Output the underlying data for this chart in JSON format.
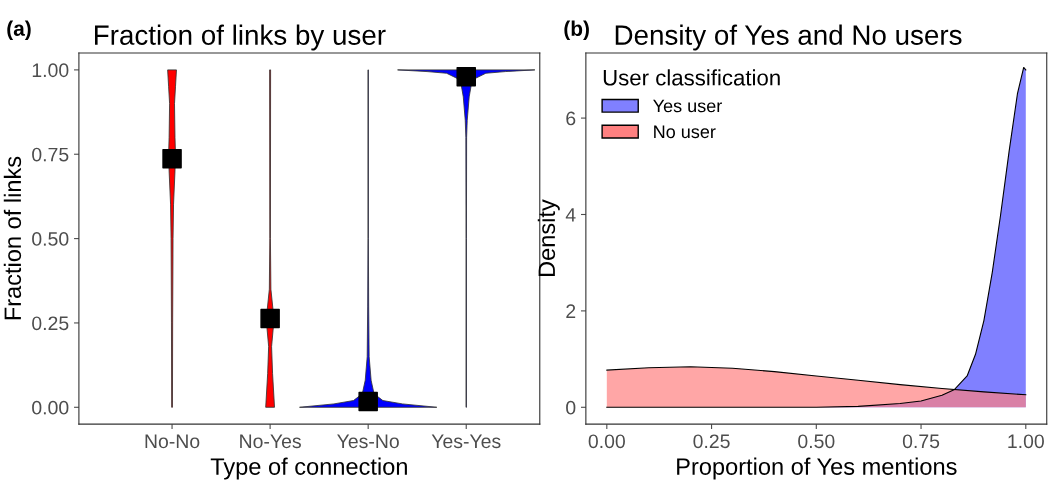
{
  "chart_data": [
    {
      "type": "scatter",
      "title": "Fraction of links by user",
      "annotations": [
        "(a)"
      ],
      "xlabel": "Type of connection",
      "ylabel": "Fraction of links",
      "categories": [
        "No-No",
        "No-Yes",
        "Yes-No",
        "Yes-Yes"
      ],
      "ylim": [
        -0.05,
        1.05
      ],
      "yticks": [
        {
          "value": 0,
          "label": "0.00"
        },
        {
          "value": 0.25,
          "label": "0.25"
        },
        {
          "value": 0.5,
          "label": "0.50"
        },
        {
          "value": 0.75,
          "label": "0.75"
        },
        {
          "value": 1,
          "label": "1.00"
        }
      ],
      "grid": false,
      "legend": false,
      "marker": "square",
      "series": [
        {
          "type": "scatter",
          "color": "#000000",
          "values": [
            0.737,
            0.263,
            0.017,
            0.98
          ]
        }
      ]
    },
    {
      "type": "area",
      "title": "Density of Yes and No users",
      "annotations": [
        "(b)"
      ],
      "xlabel": "Proportion of Yes mentions",
      "ylabel": "Density",
      "legend_title": "User classification",
      "xlim": [
        -0.05,
        1.05
      ],
      "xticks": [
        {
          "value": 0,
          "label": "0.00"
        },
        {
          "value": 0.25,
          "label": "0.25"
        },
        {
          "value": 0.5,
          "label": "0.50"
        },
        {
          "value": 0.75,
          "label": "0.75"
        },
        {
          "value": 1,
          "label": "1.00"
        }
      ],
      "ylim": [
        -0.35,
        7.35
      ],
      "yticks": [
        0,
        2,
        4,
        6
      ],
      "grid": false,
      "legend": "top left",
      "series": [
        {
          "name": "Yes user",
          "color": "#8080ff",
          "x": [
            0,
            0.5,
            0.6,
            0.7,
            0.75,
            0.8,
            0.83,
            0.86,
            0.88,
            0.9,
            0.92,
            0.94,
            0.96,
            0.98,
            0.995,
            1.0
          ],
          "values": [
            0,
            0,
            0.02,
            0.08,
            0.13,
            0.25,
            0.37,
            0.65,
            1.1,
            1.8,
            2.8,
            4.0,
            5.3,
            6.5,
            7.05,
            7.0
          ]
        },
        {
          "name": "No user",
          "color": "#ff8080",
          "x": [
            0,
            0.1,
            0.2,
            0.3,
            0.4,
            0.5,
            0.6,
            0.7,
            0.8,
            0.9,
            1.0
          ],
          "values": [
            0.77,
            0.82,
            0.84,
            0.81,
            0.74,
            0.65,
            0.56,
            0.47,
            0.39,
            0.32,
            0.26
          ]
        }
      ]
    }
  ]
}
